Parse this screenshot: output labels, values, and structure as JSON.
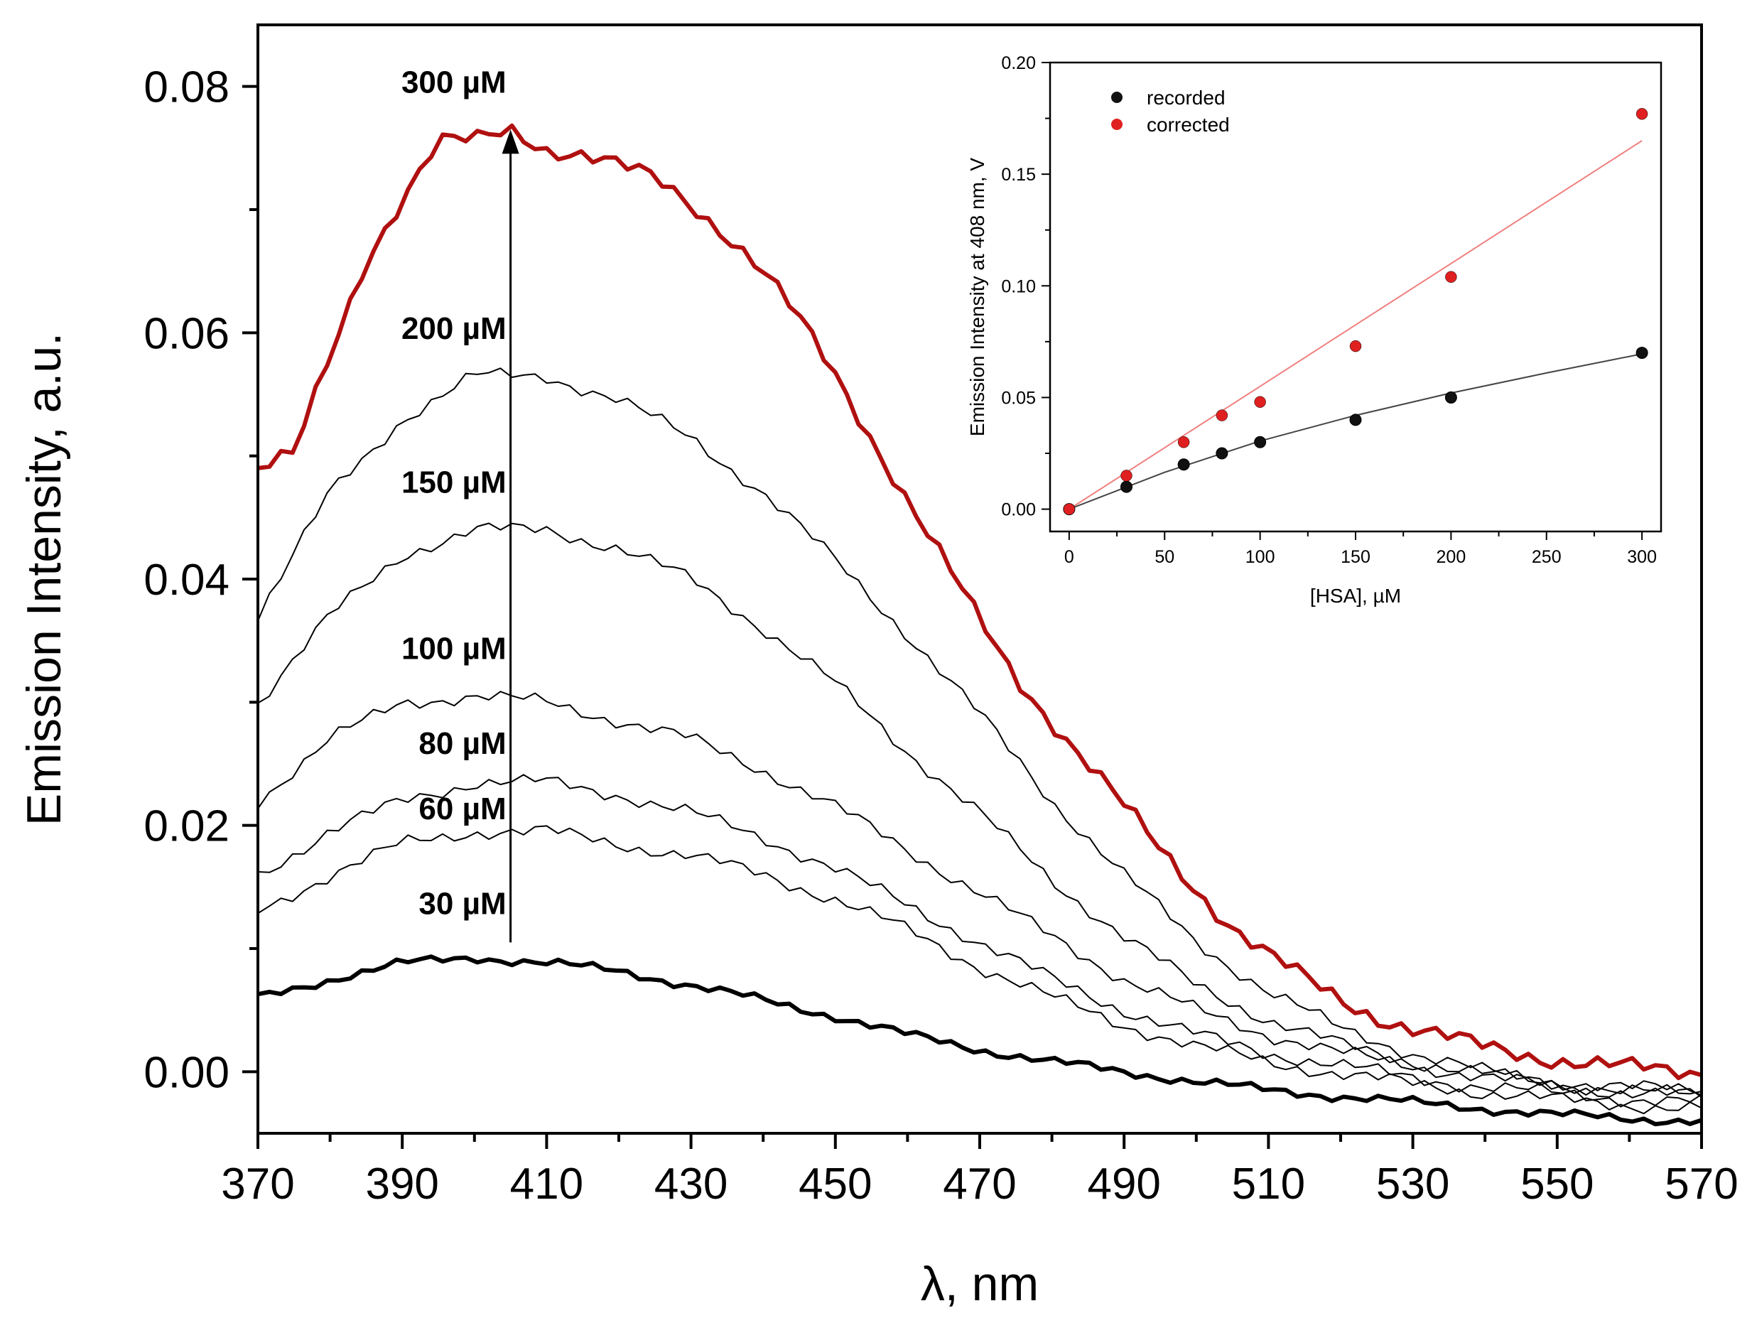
{
  "chart_data": [
    {
      "type": "line",
      "xlabel": "λ, nm",
      "ylabel": "Emission Intensity, a.u.",
      "xlim": [
        370,
        570
      ],
      "ylim": [
        -0.005,
        0.085
      ],
      "xticks": [
        370,
        390,
        410,
        430,
        450,
        470,
        490,
        510,
        530,
        550,
        570
      ],
      "yticks": [
        "0.00",
        "0.02",
        "0.04",
        "0.06",
        "0.08"
      ],
      "ytick_values": [
        0.0,
        0.02,
        0.04,
        0.06,
        0.08
      ],
      "arrow": {
        "x": 405,
        "y_from": 0.0105,
        "y_to": 0.0765
      },
      "series": [
        {
          "name": "30 µM",
          "label": "30 µM",
          "color": "#000000",
          "bold": true,
          "label_pos": [
            405,
            0.0128
          ],
          "x": [
            370,
            380,
            390,
            400,
            410,
            420,
            430,
            440,
            450,
            460,
            470,
            480,
            490,
            500,
            510,
            520,
            530,
            540,
            550,
            560,
            570
          ],
          "y": [
            0.006,
            0.0075,
            0.0088,
            0.0093,
            0.0088,
            0.0082,
            0.007,
            0.0058,
            0.0045,
            0.003,
            0.0018,
            0.0008,
            0.0,
            -0.0008,
            -0.0015,
            -0.002,
            -0.0025,
            -0.003,
            -0.0035,
            -0.0038,
            -0.004
          ]
        },
        {
          "name": "60 µM",
          "label": "60 µM",
          "color": "#000000",
          "bold": false,
          "label_pos": [
            405,
            0.0205
          ],
          "x": [
            370,
            380,
            390,
            400,
            410,
            420,
            430,
            440,
            450,
            460,
            470,
            480,
            490,
            500,
            510,
            520,
            530,
            540,
            550,
            560,
            570
          ],
          "y": [
            0.013,
            0.016,
            0.0185,
            0.0195,
            0.0195,
            0.0185,
            0.0175,
            0.016,
            0.014,
            0.0115,
            0.0085,
            0.006,
            0.0038,
            0.002,
            0.0008,
            -0.0002,
            -0.001,
            -0.0017,
            -0.0023,
            -0.0027,
            -0.003
          ]
        },
        {
          "name": "80 µM",
          "label": "80 µM",
          "color": "#000000",
          "bold": false,
          "label_pos": [
            405,
            0.0258
          ],
          "x": [
            370,
            380,
            390,
            400,
            410,
            420,
            430,
            440,
            450,
            460,
            470,
            480,
            490,
            500,
            510,
            520,
            530,
            540,
            550,
            560,
            570
          ],
          "y": [
            0.016,
            0.0195,
            0.022,
            0.0235,
            0.0235,
            0.0225,
            0.021,
            0.019,
            0.0165,
            0.0135,
            0.0105,
            0.0075,
            0.005,
            0.003,
            0.0015,
            0.0005,
            -0.0005,
            -0.0012,
            -0.0018,
            -0.0022,
            -0.0025
          ]
        },
        {
          "name": "100 µM",
          "label": "100 µM",
          "color": "#000000",
          "bold": false,
          "label_pos": [
            405,
            0.0335
          ],
          "x": [
            370,
            380,
            390,
            400,
            410,
            420,
            430,
            440,
            450,
            460,
            470,
            480,
            490,
            500,
            510,
            520,
            530,
            540,
            550,
            560,
            570
          ],
          "y": [
            0.022,
            0.027,
            0.03,
            0.0305,
            0.03,
            0.0285,
            0.027,
            0.0245,
            0.0215,
            0.018,
            0.0145,
            0.011,
            0.0075,
            0.005,
            0.003,
            0.0015,
            0.0005,
            -0.0005,
            -0.0012,
            -0.0017,
            -0.002
          ]
        },
        {
          "name": "150 µM",
          "label": "150 µM",
          "color": "#000000",
          "bold": false,
          "label_pos": [
            405,
            0.047
          ],
          "x": [
            370,
            380,
            390,
            400,
            410,
            420,
            430,
            440,
            450,
            460,
            470,
            480,
            490,
            500,
            510,
            520,
            530,
            540,
            550,
            560,
            570
          ],
          "y": [
            0.03,
            0.037,
            0.042,
            0.044,
            0.044,
            0.0425,
            0.04,
            0.036,
            0.0315,
            0.026,
            0.021,
            0.0155,
            0.011,
            0.007,
            0.0042,
            0.0022,
            0.0008,
            -0.0002,
            -0.001,
            -0.0015,
            -0.002
          ]
        },
        {
          "name": "200 µM",
          "label": "200 µM",
          "color": "#000000",
          "bold": false,
          "label_pos": [
            405,
            0.0595
          ],
          "x": [
            370,
            380,
            390,
            400,
            410,
            420,
            430,
            440,
            450,
            460,
            470,
            480,
            490,
            500,
            510,
            520,
            530,
            540,
            550,
            560,
            570
          ],
          "y": [
            0.037,
            0.047,
            0.053,
            0.0565,
            0.0565,
            0.0545,
            0.0515,
            0.047,
            0.0415,
            0.0355,
            0.029,
            0.022,
            0.016,
            0.0105,
            0.0065,
            0.0035,
            0.0015,
            0.0,
            -0.0008,
            -0.0013,
            -0.0015
          ]
        },
        {
          "name": "300 µM",
          "label": "300 µM",
          "color": "#b01010",
          "bold": true,
          "label_pos": [
            405,
            0.0795
          ],
          "x": [
            370,
            375,
            380,
            385,
            390,
            395,
            400,
            405,
            410,
            415,
            420,
            425,
            430,
            435,
            440,
            445,
            450,
            455,
            460,
            465,
            470,
            475,
            480,
            485,
            490,
            495,
            500,
            505,
            510,
            515,
            520,
            525,
            530,
            535,
            540,
            545,
            550,
            555,
            560,
            565,
            570
          ],
          "y": [
            0.049,
            0.05,
            0.058,
            0.066,
            0.071,
            0.0755,
            0.0755,
            0.0765,
            0.075,
            0.0745,
            0.0735,
            0.0725,
            0.0705,
            0.068,
            0.065,
            0.061,
            0.0565,
            0.0515,
            0.0465,
            0.0415,
            0.0365,
            0.032,
            0.0285,
            0.025,
            0.0215,
            0.018,
            0.0148,
            0.0118,
            0.0095,
            0.0075,
            0.0058,
            0.0045,
            0.0035,
            0.0027,
            0.002,
            0.0015,
            0.001,
            0.0006,
            0.0003,
            0.0001,
            0.0
          ]
        }
      ]
    },
    {
      "type": "scatter",
      "xlabel": "[HSA], µM",
      "ylabel": "Emission Intensity at 408 nm, V",
      "xlim": [
        -10,
        310
      ],
      "ylim": [
        -0.01,
        0.2
      ],
      "xticks": [
        "0",
        "50",
        "100",
        "150",
        "200",
        "250",
        "300"
      ],
      "xtick_values": [
        0,
        50,
        100,
        150,
        200,
        250,
        300
      ],
      "yticks": [
        "0.00",
        "0.05",
        "0.10",
        "0.15",
        "0.20"
      ],
      "ytick_values": [
        0.0,
        0.05,
        0.1,
        0.15,
        0.2
      ],
      "legend_position": "top-left",
      "series": [
        {
          "name": "recorded",
          "color": "#111111",
          "x": [
            0,
            30,
            60,
            80,
            100,
            150,
            200,
            300
          ],
          "y": [
            0.0,
            0.01,
            0.02,
            0.025,
            0.03,
            0.04,
            0.05,
            0.07
          ],
          "fit": {
            "x": [
              0,
              50,
              100,
              150,
              200,
              250,
              300
            ],
            "y": [
              0.0,
              0.0165,
              0.0305,
              0.042,
              0.052,
              0.061,
              0.0695
            ],
            "color": "#444444"
          }
        },
        {
          "name": "corrected",
          "color": "#e02020",
          "x": [
            0,
            30,
            60,
            80,
            100,
            150,
            200,
            300
          ],
          "y": [
            0.0,
            0.015,
            0.03,
            0.042,
            0.048,
            0.073,
            0.104,
            0.177
          ],
          "fit": {
            "x": [
              0,
              300
            ],
            "y": [
              0.0,
              0.165
            ],
            "color": "#f08080"
          }
        }
      ]
    }
  ]
}
